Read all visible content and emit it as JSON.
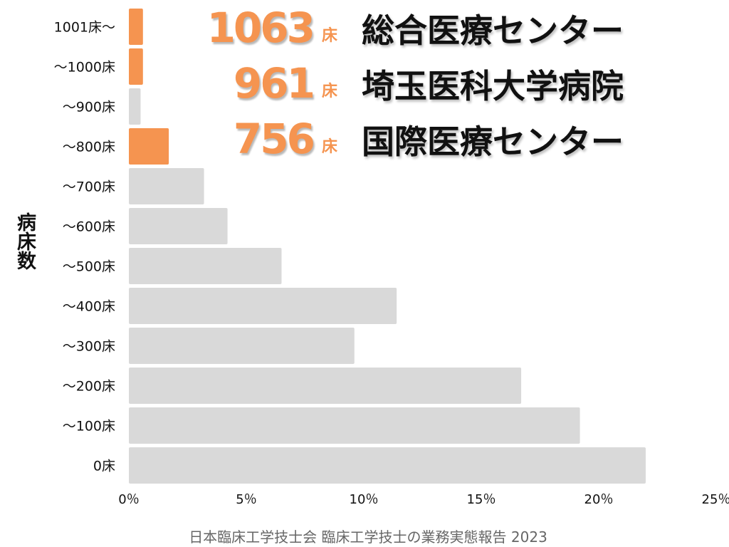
{
  "chart_data": {
    "type": "bar",
    "orientation": "horizontal",
    "ylabel": "病床数",
    "xlabel": "",
    "categories": [
      "1001床〜",
      "〜1000床",
      "〜900床",
      "〜800床",
      "〜700床",
      "〜600床",
      "〜500床",
      "〜400床",
      "〜300床",
      "〜200床",
      "〜100床",
      "0床"
    ],
    "values": [
      0.6,
      0.6,
      0.5,
      1.7,
      3.2,
      4.2,
      6.5,
      11.4,
      9.6,
      16.7,
      19.2,
      22.0
    ],
    "highlighted": [
      true,
      true,
      false,
      true,
      false,
      false,
      false,
      false,
      false,
      false,
      false,
      false
    ],
    "xlim": [
      0,
      25
    ],
    "xticks": [
      0,
      5,
      10,
      15,
      20,
      25
    ],
    "xtick_labels": [
      "0％",
      "5％",
      "10％",
      "15％",
      "20％",
      "25％"
    ],
    "grid": false,
    "colors": {
      "highlight": "#f59450",
      "default": "#d9d9d9"
    }
  },
  "callouts": [
    {
      "beds": "1063",
      "unit": "床",
      "name": "総合医療センター"
    },
    {
      "beds": "961",
      "unit": "床",
      "name": "埼玉医科大学病院"
    },
    {
      "beds": "756",
      "unit": "床",
      "name": "国際医療センター"
    }
  ],
  "source": "日本臨床工学技士会 臨床工学技士の業務実態報告 2023"
}
